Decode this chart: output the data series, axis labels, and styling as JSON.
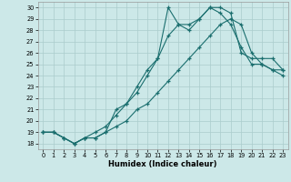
{
  "xlabel": "Humidex (Indice chaleur)",
  "ylabel": "",
  "bg_color": "#cce8e8",
  "grid_color": "#aacccc",
  "line_color": "#1a6e6e",
  "xlim": [
    -0.5,
    23.5
  ],
  "ylim": [
    17.5,
    30.5
  ],
  "xticks": [
    0,
    1,
    2,
    3,
    4,
    5,
    6,
    7,
    8,
    9,
    10,
    11,
    12,
    13,
    14,
    15,
    16,
    17,
    18,
    19,
    20,
    21,
    22,
    23
  ],
  "yticks": [
    18,
    19,
    20,
    21,
    22,
    23,
    24,
    25,
    26,
    27,
    28,
    29,
    30
  ],
  "series": [
    {
      "x": [
        0,
        1,
        2,
        3,
        4,
        5,
        6,
        7,
        8,
        9,
        10,
        11,
        12,
        13,
        14,
        15,
        16,
        17,
        18,
        19,
        20,
        21,
        22,
        23
      ],
      "y": [
        19,
        19,
        18.5,
        18,
        18.5,
        18.5,
        19,
        21,
        21.5,
        22.5,
        24,
        25.5,
        30,
        28.5,
        28,
        29,
        30,
        29.5,
        28.5,
        26.5,
        25,
        25,
        24.5,
        24.5
      ]
    },
    {
      "x": [
        0,
        1,
        2,
        3,
        4,
        5,
        6,
        7,
        8,
        9,
        10,
        11,
        12,
        13,
        14,
        15,
        16,
        17,
        18,
        19,
        20,
        21,
        22,
        23
      ],
      "y": [
        19,
        19,
        18.5,
        18,
        18.5,
        19,
        19.5,
        20.5,
        21.5,
        23,
        24.5,
        25.5,
        27.5,
        28.5,
        28.5,
        29,
        30,
        30,
        29.5,
        26,
        25.5,
        25.5,
        25.5,
        24.5
      ]
    },
    {
      "x": [
        0,
        1,
        2,
        3,
        4,
        5,
        6,
        7,
        8,
        9,
        10,
        11,
        12,
        13,
        14,
        15,
        16,
        17,
        18,
        19,
        20,
        21,
        22,
        23
      ],
      "y": [
        19,
        19,
        18.5,
        18,
        18.5,
        18.5,
        19,
        19.5,
        20,
        21,
        21.5,
        22.5,
        23.5,
        24.5,
        25.5,
        26.5,
        27.5,
        28.5,
        29,
        28.5,
        26,
        25,
        24.5,
        24
      ]
    }
  ],
  "marker": "+",
  "markersize": 3.5,
  "linewidth": 0.8
}
